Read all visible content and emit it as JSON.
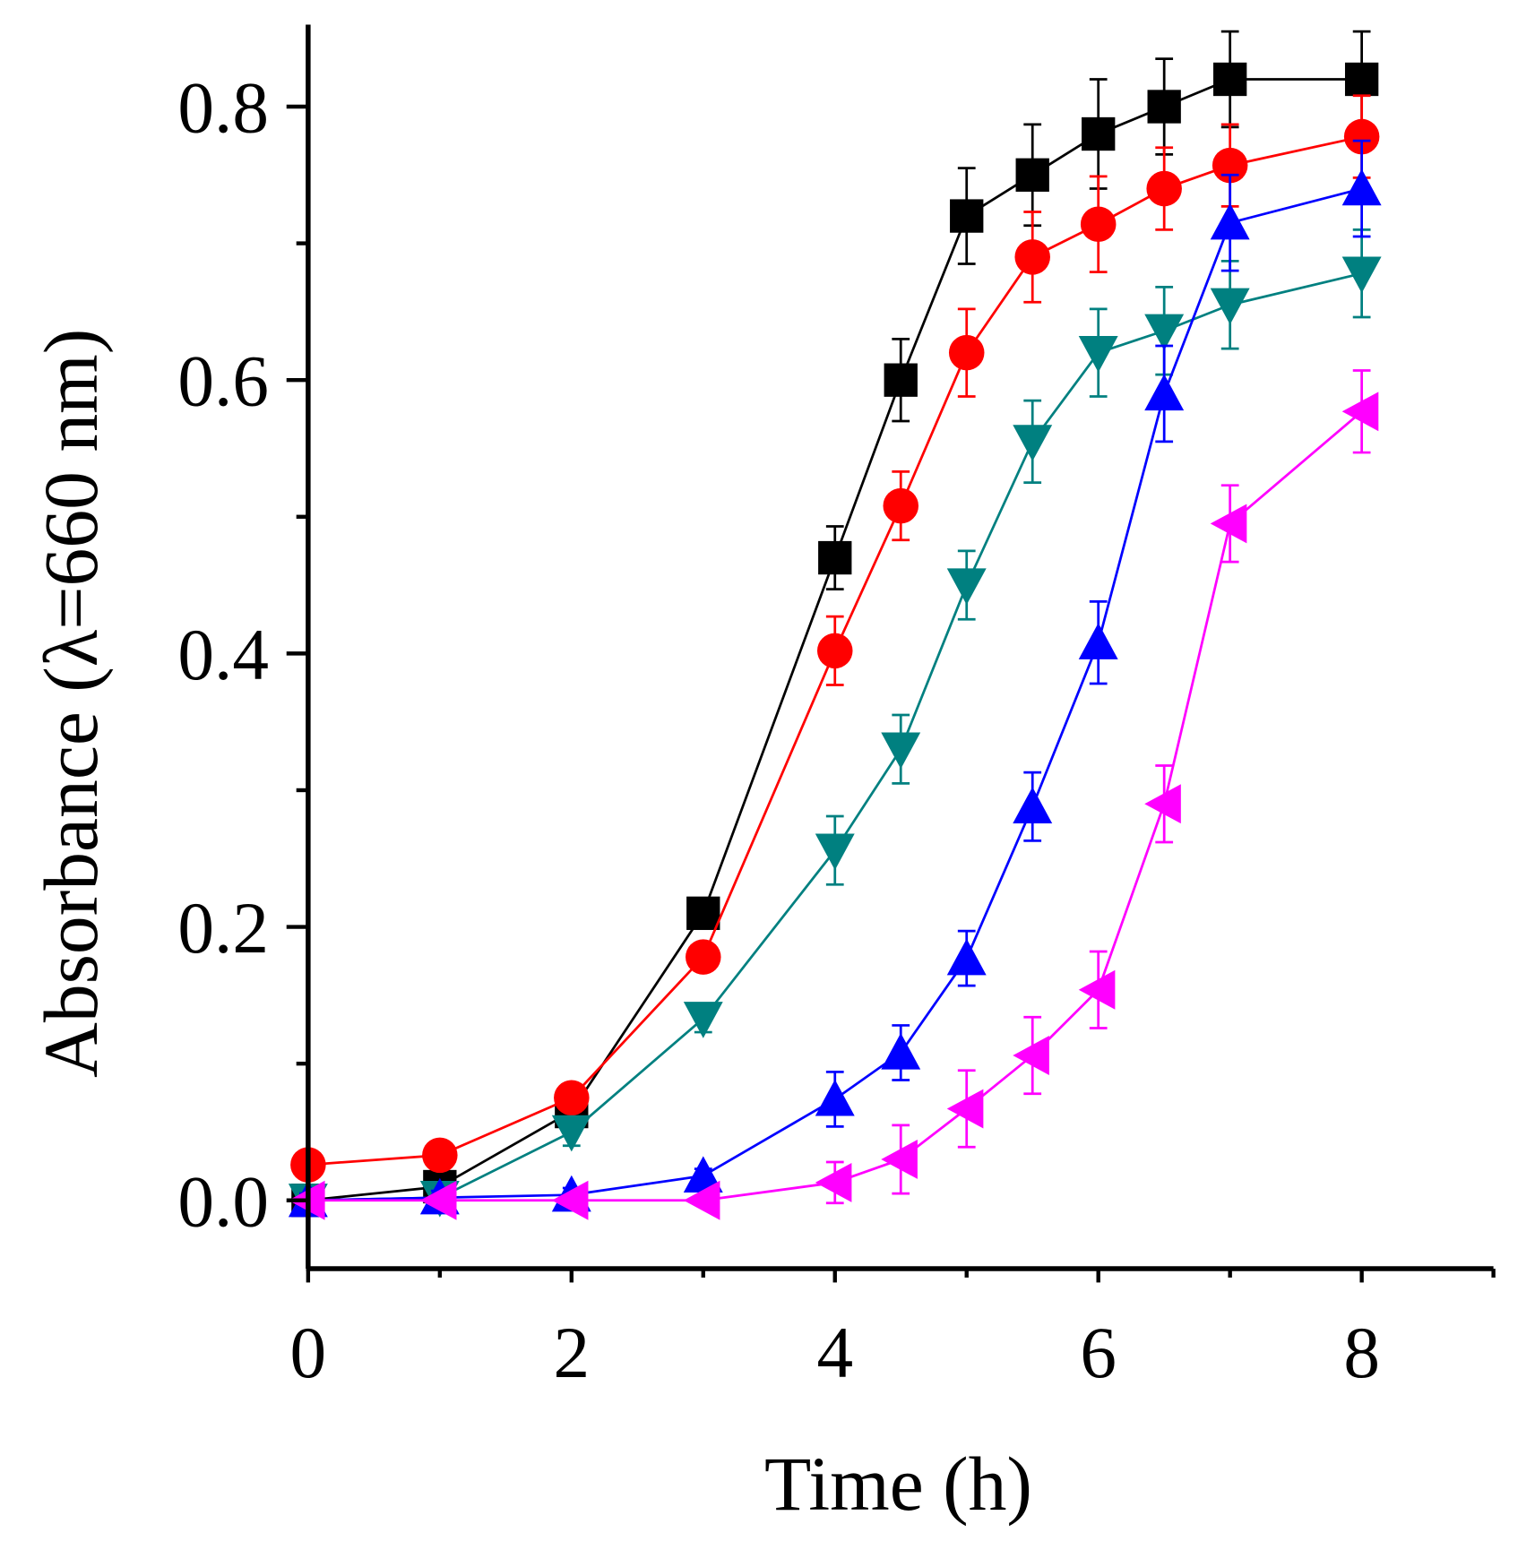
{
  "chart_data": {
    "type": "line",
    "title": "",
    "xlabel": "Time (h)",
    "ylabel": "Absorbance (λ=660 nm)",
    "xlim": [
      0,
      9
    ],
    "ylim": [
      -0.05,
      0.86
    ],
    "xticks": [
      0,
      2,
      4,
      6,
      8
    ],
    "xtick_labels": [
      "0",
      "2",
      "4",
      "6",
      "8"
    ],
    "xminor": [
      1,
      3,
      5,
      7,
      9
    ],
    "yticks": [
      0.0,
      0.2,
      0.4,
      0.6,
      0.8
    ],
    "ytick_labels": [
      "0.0",
      "0.2",
      "0.4",
      "0.6",
      "0.8"
    ],
    "yminor": [
      0.1,
      0.3,
      0.5,
      0.7
    ],
    "grid": false,
    "legend": "none",
    "x": [
      0,
      1,
      2,
      3,
      4,
      4.5,
      5,
      5.5,
      6,
      6.5,
      7,
      8
    ],
    "series": [
      {
        "name": "black-squares",
        "color": "#000000",
        "marker": "square",
        "values": [
          0,
          0.01,
          0.065,
          0.21,
          0.47,
          0.6,
          0.72,
          0.75,
          0.78,
          0.8,
          0.82,
          0.82
        ],
        "errors": [
          0.005,
          0.008,
          0.01,
          0.01,
          0.023,
          0.03,
          0.035,
          0.037,
          0.04,
          0.035,
          0.035,
          0.035
        ]
      },
      {
        "name": "red-circles",
        "color": "#ff0000",
        "marker": "circle",
        "values": [
          0.026,
          0.033,
          0.075,
          0.178,
          0.402,
          0.508,
          0.62,
          0.69,
          0.714,
          0.74,
          0.757,
          0.778
        ],
        "errors": [
          0.005,
          0.005,
          0.01,
          0.01,
          0.025,
          0.025,
          0.032,
          0.033,
          0.035,
          0.03,
          0.03,
          0.03
        ]
      },
      {
        "name": "teal-down-triangles",
        "color": "#008080",
        "marker": "triangle-down",
        "values": [
          0,
          0.002,
          0.05,
          0.133,
          0.256,
          0.33,
          0.45,
          0.555,
          0.62,
          0.636,
          0.655,
          0.678
        ],
        "errors": [
          0.005,
          0.005,
          0.01,
          0.01,
          0.025,
          0.025,
          0.025,
          0.03,
          0.032,
          0.032,
          0.032,
          0.032
        ]
      },
      {
        "name": "blue-up-triangles",
        "color": "#0000ff",
        "marker": "triangle-up",
        "values": [
          0,
          0.002,
          0.004,
          0.018,
          0.074,
          0.108,
          0.177,
          0.288,
          0.408,
          0.59,
          0.715,
          0.74
        ],
        "errors": [
          0.005,
          0.005,
          0.005,
          0.005,
          0.02,
          0.02,
          0.02,
          0.025,
          0.03,
          0.035,
          0.035,
          0.035
        ]
      },
      {
        "name": "magenta-left-triangles",
        "color": "#ff00ff",
        "marker": "triangle-left",
        "values": [
          0,
          0,
          0,
          0,
          0.013,
          0.03,
          0.067,
          0.106,
          0.154,
          0.29,
          0.495,
          0.577
        ],
        "errors": [
          0.003,
          0.003,
          0.003,
          0.003,
          0.015,
          0.025,
          0.028,
          0.028,
          0.028,
          0.028,
          0.028,
          0.03
        ]
      }
    ]
  }
}
